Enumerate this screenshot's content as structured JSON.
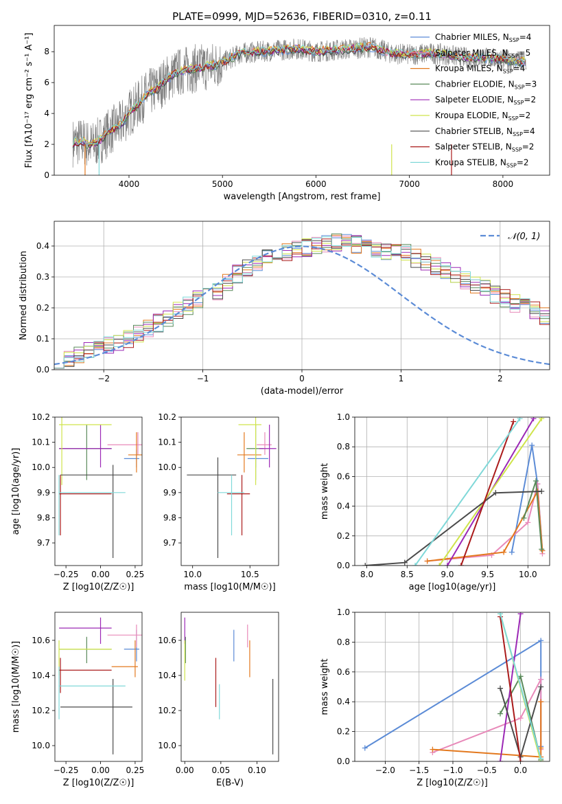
{
  "figure": {
    "title": "PLATE=0999, MJD=52636, FIBERID=0310, z=0.11"
  },
  "colors": {
    "Chabrier MILES": "#5b8bd6",
    "Salpeter MILES": "#e889b9",
    "Kroupa MILES": "#e3781d",
    "Chabrier ELODIE": "#5a8a5a",
    "Salpeter ELODIE": "#9b27b5",
    "Kroupa ELODIE": "#cfe44a",
    "Chabrier STELIB": "#4a4a4a",
    "Salpeter STELIB": "#aa1a1a",
    "Kroupa STELIB": "#7fd8d8",
    "data": "#808080",
    "normal": "#5b8bd6"
  },
  "chart_data": [
    {
      "id": "spectrum",
      "type": "line",
      "xlabel": "wavelength [Angstrom, rest frame]",
      "ylabel": "Flux [fλ10⁻¹⁷ erg cm⁻² s⁻¹ A⁻¹]",
      "xlim": [
        3200,
        8500
      ],
      "ylim": [
        0,
        9.7
      ],
      "xticks": [
        4000,
        5000,
        6000,
        7000,
        8000
      ],
      "yticks": [
        0,
        2,
        4,
        6,
        8
      ],
      "legend_position": "top-right",
      "legend": [
        {
          "name": "Chabrier MILES",
          "nssp": "4"
        },
        {
          "name": "Salpeter MILES",
          "nssp": "5"
        },
        {
          "name": "Kroupa MILES",
          "nssp": "4"
        },
        {
          "name": "Chabrier ELODIE",
          "nssp": "3"
        },
        {
          "name": "Salpeter ELODIE",
          "nssp": "2"
        },
        {
          "name": "Kroupa ELODIE",
          "nssp": "2"
        },
        {
          "name": "Chabrier STELIB",
          "nssp": "4"
        },
        {
          "name": "Salpeter STELIB",
          "nssp": "2"
        },
        {
          "name": "Kroupa STELIB",
          "nssp": "2"
        }
      ],
      "continuum": [
        [
          3400,
          2.1
        ],
        [
          3500,
          2.2
        ],
        [
          3600,
          1.9
        ],
        [
          3700,
          2.3
        ],
        [
          3800,
          2.9
        ],
        [
          3900,
          3.2
        ],
        [
          4000,
          4.0
        ],
        [
          4100,
          4.6
        ],
        [
          4200,
          5.3
        ],
        [
          4300,
          5.6
        ],
        [
          4400,
          6.2
        ],
        [
          4500,
          6.6
        ],
        [
          4600,
          6.8
        ],
        [
          4700,
          6.9
        ],
        [
          4800,
          7.0
        ],
        [
          4900,
          7.1
        ],
        [
          5000,
          7.3
        ],
        [
          5200,
          7.9
        ],
        [
          5400,
          8.0
        ],
        [
          5600,
          8.1
        ],
        [
          5800,
          8.2
        ],
        [
          6000,
          8.0
        ],
        [
          6200,
          8.1
        ],
        [
          6400,
          8.2
        ],
        [
          6600,
          8.3
        ],
        [
          6800,
          7.9
        ],
        [
          7000,
          7.8
        ],
        [
          7200,
          7.9
        ],
        [
          7400,
          7.8
        ],
        [
          7600,
          7.6
        ],
        [
          7800,
          7.6
        ],
        [
          8000,
          7.5
        ],
        [
          8250,
          7.3
        ]
      ]
    },
    {
      "id": "residuals",
      "type": "histogram",
      "xlabel": "(data-model)/error",
      "ylabel": "Normed distribution",
      "xlim": [
        -2.5,
        2.5
      ],
      "ylim": [
        0,
        0.48
      ],
      "xticks": [
        -2,
        -1,
        0,
        1,
        2
      ],
      "yticks": [
        0.0,
        0.1,
        0.2,
        0.3,
        0.4
      ],
      "grid": true,
      "legend": "𝒩(0, 1)",
      "legend_position": "top-right",
      "bin_width": 0.1,
      "bin_start": -2.5,
      "shape": [
        0.025,
        0.03,
        0.045,
        0.06,
        0.07,
        0.078,
        0.085,
        0.1,
        0.115,
        0.13,
        0.15,
        0.165,
        0.19,
        0.205,
        0.23,
        0.245,
        0.255,
        0.285,
        0.31,
        0.33,
        0.345,
        0.36,
        0.37,
        0.38,
        0.39,
        0.395,
        0.4,
        0.405,
        0.41,
        0.41,
        0.405,
        0.4,
        0.39,
        0.385,
        0.38,
        0.375,
        0.36,
        0.35,
        0.335,
        0.32,
        0.305,
        0.29,
        0.275,
        0.26,
        0.245,
        0.23,
        0.215,
        0.2,
        0.19,
        0.175,
        0.16,
        0.15,
        0.14,
        0.125,
        0.11,
        0.1,
        0.085,
        0.075,
        0.065,
        0.055
      ]
    },
    {
      "id": "age-vs-z",
      "type": "errorbar",
      "xlabel": "Z [log10(Z/Z☉)]",
      "ylabel": "age  [log10(age/yr)]",
      "xlim": [
        -0.33,
        0.3
      ],
      "ylim": [
        9.61,
        10.2
      ],
      "xticks": [
        -0.25,
        0.0,
        0.25
      ],
      "yticks": [
        9.7,
        9.8,
        9.9,
        10.0,
        10.1,
        10.2
      ],
      "points": [
        {
          "series": "Chabrier MILES",
          "x": 0.26,
          "xlo": 0.17,
          "xhi": 0.28,
          "y": 10.035,
          "ylo": 10.0,
          "yhi": 10.07
        },
        {
          "series": "Salpeter MILES",
          "x": 0.27,
          "xlo": 0.05,
          "xhi": 0.3,
          "y": 10.09,
          "ylo": 10.05,
          "yhi": 10.14
        },
        {
          "series": "Kroupa MILES",
          "x": 0.26,
          "xlo": 0.2,
          "xhi": 0.3,
          "y": 10.05,
          "ylo": 9.98,
          "yhi": 10.14
        },
        {
          "series": "Chabrier ELODIE",
          "x": -0.1,
          "xlo": -0.3,
          "xhi": 0.08,
          "y": 10.075,
          "ylo": 9.95,
          "yhi": 10.17
        },
        {
          "series": "Salpeter ELODIE",
          "x": 0.0,
          "xlo": -0.3,
          "xhi": 0.08,
          "y": 10.075,
          "ylo": 10.0,
          "yhi": 10.17
        },
        {
          "series": "Kroupa ELODIE",
          "x": -0.28,
          "xlo": -0.3,
          "xhi": 0.08,
          "y": 10.17,
          "ylo": 9.93,
          "yhi": 10.2
        },
        {
          "series": "Chabrier STELIB",
          "x": 0.09,
          "xlo": -0.29,
          "xhi": 0.23,
          "y": 9.97,
          "ylo": 9.64,
          "yhi": 10.01
        },
        {
          "series": "Salpeter STELIB",
          "x": -0.29,
          "xlo": -0.3,
          "xhi": 0.08,
          "y": 9.895,
          "ylo": 9.73,
          "yhi": 9.97
        },
        {
          "series": "Kroupa STELIB",
          "x": -0.3,
          "xlo": -0.3,
          "xhi": 0.18,
          "y": 9.9,
          "ylo": 9.73,
          "yhi": 9.97
        }
      ]
    },
    {
      "id": "age-vs-mass",
      "type": "errorbar",
      "xlabel": "mass [log10(M/M☉)]",
      "ylabel": "",
      "xlim": [
        9.9,
        10.75
      ],
      "ylim": [
        9.61,
        10.2
      ],
      "xticks": [
        10.0,
        10.5
      ],
      "yticks": [
        9.7,
        9.8,
        9.9,
        10.0,
        10.1,
        10.2
      ],
      "points": [
        {
          "series": "Chabrier MILES",
          "x": 10.55,
          "xlo": 10.48,
          "xhi": 10.66,
          "y": 10.035,
          "ylo": 10.0,
          "yhi": 10.07
        },
        {
          "series": "Salpeter MILES",
          "x": 10.63,
          "xlo": 10.56,
          "xhi": 10.69,
          "y": 10.09,
          "ylo": 10.05,
          "yhi": 10.14
        },
        {
          "series": "Kroupa MILES",
          "x": 10.45,
          "xlo": 10.39,
          "xhi": 10.6,
          "y": 10.05,
          "ylo": 9.98,
          "yhi": 10.14
        },
        {
          "series": "Chabrier ELODIE",
          "x": 10.55,
          "xlo": 10.47,
          "xhi": 10.62,
          "y": 10.075,
          "ylo": 9.95,
          "yhi": 10.17
        },
        {
          "series": "Salpeter ELODIE",
          "x": 10.67,
          "xlo": 10.58,
          "xhi": 10.73,
          "y": 10.075,
          "ylo": 10.0,
          "yhi": 10.17
        },
        {
          "series": "Kroupa ELODIE",
          "x": 10.55,
          "xlo": 10.4,
          "xhi": 10.6,
          "y": 10.17,
          "ylo": 9.93,
          "yhi": 10.2
        },
        {
          "series": "Chabrier STELIB",
          "x": 10.22,
          "xlo": 9.95,
          "xhi": 10.38,
          "y": 9.97,
          "ylo": 9.64,
          "yhi": 10.04
        },
        {
          "series": "Salpeter STELIB",
          "x": 10.43,
          "xlo": 10.3,
          "xhi": 10.5,
          "y": 9.895,
          "ylo": 9.73,
          "yhi": 9.97
        },
        {
          "series": "Kroupa STELIB",
          "x": 10.34,
          "xlo": 10.22,
          "xhi": 10.45,
          "y": 9.9,
          "ylo": 9.73,
          "yhi": 9.97
        }
      ]
    },
    {
      "id": "mass-weight-vs-age",
      "type": "line",
      "xlabel": "age  [log10(age/yr)]",
      "ylabel": "mass weight",
      "xlim": [
        7.85,
        10.27
      ],
      "ylim": [
        0,
        1
      ],
      "xticks": [
        8.0,
        8.5,
        9.0,
        9.5,
        10.0
      ],
      "yticks": [
        0.0,
        0.2,
        0.4,
        0.6,
        0.8,
        1.0
      ],
      "grid": true,
      "series": [
        {
          "name": "Chabrier MILES",
          "points": [
            [
              9.8,
              0.09
            ],
            [
              10.05,
              0.81
            ],
            [
              10.12,
              0.55
            ],
            [
              10.18,
              0.1
            ]
          ]
        },
        {
          "name": "Salpeter MILES",
          "points": [
            [
              8.75,
              0.03
            ],
            [
              9.55,
              0.07
            ],
            [
              10.0,
              0.29
            ],
            [
              10.12,
              0.55
            ],
            [
              10.18,
              0.08
            ]
          ]
        },
        {
          "name": "Kroupa MILES",
          "points": [
            [
              8.75,
              0.03
            ],
            [
              9.7,
              0.09
            ],
            [
              10.12,
              0.5
            ],
            [
              10.18,
              0.1
            ]
          ]
        },
        {
          "name": "Chabrier ELODIE",
          "points": [
            [
              9.95,
              0.32
            ],
            [
              10.1,
              0.57
            ],
            [
              10.17,
              0.11
            ]
          ]
        },
        {
          "name": "Salpeter ELODIE",
          "points": [
            [
              9.0,
              0.0
            ],
            [
              10.07,
              0.99
            ]
          ]
        },
        {
          "name": "Kroupa ELODIE",
          "points": [
            [
              8.9,
              0.0
            ],
            [
              10.17,
              0.99
            ]
          ]
        },
        {
          "name": "Chabrier STELIB",
          "points": [
            [
              7.98,
              0.0
            ],
            [
              8.47,
              0.02
            ],
            [
              9.6,
              0.49
            ],
            [
              10.17,
              0.5
            ]
          ]
        },
        {
          "name": "Salpeter STELIB",
          "points": [
            [
              9.17,
              0.0
            ],
            [
              9.82,
              0.97
            ]
          ]
        },
        {
          "name": "Kroupa STELIB",
          "points": [
            [
              8.6,
              0.0
            ],
            [
              9.9,
              0.99
            ]
          ]
        }
      ]
    },
    {
      "id": "mass-vs-z",
      "type": "errorbar",
      "xlabel": "Z [log10(Z/Z☉)]",
      "ylabel": "mass [log10(M/M☉)]",
      "xlim": [
        -0.33,
        0.3
      ],
      "ylim": [
        9.91,
        10.76
      ],
      "xticks": [
        -0.25,
        0.0,
        0.25
      ],
      "yticks": [
        10.0,
        10.2,
        10.4,
        10.6
      ],
      "points": [
        {
          "series": "Chabrier MILES",
          "x": 0.26,
          "xlo": 0.17,
          "xhi": 0.28,
          "y": 10.55,
          "ylo": 10.48,
          "yhi": 10.66
        },
        {
          "series": "Salpeter MILES",
          "x": 0.26,
          "xlo": 0.05,
          "xhi": 0.3,
          "y": 10.63,
          "ylo": 10.56,
          "yhi": 10.69
        },
        {
          "series": "Kroupa MILES",
          "x": 0.25,
          "xlo": 0.08,
          "xhi": 0.27,
          "y": 10.45,
          "ylo": 10.39,
          "yhi": 10.6
        },
        {
          "series": "Chabrier ELODIE",
          "x": -0.1,
          "xlo": -0.3,
          "xhi": 0.08,
          "y": 10.55,
          "ylo": 10.47,
          "yhi": 10.62
        },
        {
          "series": "Salpeter ELODIE",
          "x": 0.0,
          "xlo": -0.3,
          "xhi": 0.08,
          "y": 10.67,
          "ylo": 10.58,
          "yhi": 10.73
        },
        {
          "series": "Kroupa ELODIE",
          "x": -0.3,
          "xlo": -0.3,
          "xhi": 0.08,
          "y": 10.55,
          "ylo": 10.4,
          "yhi": 10.6
        },
        {
          "series": "Chabrier STELIB",
          "x": 0.09,
          "xlo": -0.29,
          "xhi": 0.23,
          "y": 10.22,
          "ylo": 9.95,
          "yhi": 10.38
        },
        {
          "series": "Salpeter STELIB",
          "x": -0.29,
          "xlo": -0.3,
          "xhi": 0.08,
          "y": 10.43,
          "ylo": 10.3,
          "yhi": 10.5
        },
        {
          "series": "Kroupa STELIB",
          "x": -0.3,
          "xlo": -0.3,
          "xhi": 0.18,
          "y": 10.34,
          "ylo": 10.15,
          "yhi": 10.45
        }
      ]
    },
    {
      "id": "mass-vs-ebv",
      "type": "errorbar",
      "xlabel": "E(B-V)",
      "ylabel": "",
      "xlim": [
        -0.005,
        0.13
      ],
      "ylim": [
        9.91,
        10.76
      ],
      "xticks": [
        0.0,
        0.05,
        0.1
      ],
      "yticks": [
        10.0,
        10.2,
        10.4,
        10.6
      ],
      "points": [
        {
          "series": "Chabrier MILES",
          "x": 0.068,
          "y": 10.55,
          "ylo": 10.48,
          "yhi": 10.66
        },
        {
          "series": "Salpeter MILES",
          "x": 0.087,
          "y": 10.63,
          "ylo": 10.56,
          "yhi": 10.69
        },
        {
          "series": "Kroupa MILES",
          "x": 0.09,
          "y": 10.45,
          "ylo": 10.39,
          "yhi": 10.6
        },
        {
          "series": "Chabrier ELODIE",
          "x": 0.001,
          "y": 10.55,
          "ylo": 10.47,
          "yhi": 10.62
        },
        {
          "series": "Salpeter ELODIE",
          "x": 0.0,
          "y": 10.67,
          "ylo": 10.58,
          "yhi": 10.73
        },
        {
          "series": "Kroupa ELODIE",
          "x": 0.0,
          "y": 10.5,
          "ylo": 10.37,
          "yhi": 10.6
        },
        {
          "series": "Chabrier STELIB",
          "x": 0.122,
          "y": 10.22,
          "ylo": 9.95,
          "yhi": 10.38
        },
        {
          "series": "Salpeter STELIB",
          "x": 0.043,
          "y": 10.36,
          "ylo": 10.22,
          "yhi": 10.5
        },
        {
          "series": "Kroupa STELIB",
          "x": 0.048,
          "y": 10.25,
          "ylo": 10.15,
          "yhi": 10.35
        }
      ]
    },
    {
      "id": "mass-weight-vs-z",
      "type": "line",
      "xlabel": "Z [log10(Z/Z☉)]",
      "ylabel": "mass weight",
      "xlim": [
        -2.45,
        0.43
      ],
      "ylim": [
        0,
        1
      ],
      "xticks": [
        -2.0,
        -1.5,
        -1.0,
        -0.5,
        0.0
      ],
      "yticks": [
        0.0,
        0.2,
        0.4,
        0.6,
        0.8,
        1.0
      ],
      "grid": true,
      "series": [
        {
          "name": "Chabrier MILES",
          "points": [
            [
              -2.3,
              0.09
            ],
            [
              0.3,
              0.81
            ],
            [
              0.3,
              0.55
            ],
            [
              0.3,
              0.1
            ]
          ]
        },
        {
          "name": "Salpeter MILES",
          "points": [
            [
              -1.3,
              0.06
            ],
            [
              0.0,
              0.29
            ],
            [
              0.3,
              0.55
            ],
            [
              0.3,
              0.08
            ]
          ]
        },
        {
          "name": "Kroupa MILES",
          "points": [
            [
              -1.3,
              0.08
            ],
            [
              0.3,
              0.03
            ],
            [
              0.3,
              0.4
            ],
            [
              0.3,
              0.09
            ]
          ]
        },
        {
          "name": "Chabrier ELODIE",
          "points": [
            [
              -0.3,
              0.32
            ],
            [
              0.0,
              0.57
            ],
            [
              0.3,
              0.01
            ]
          ]
        },
        {
          "name": "Salpeter ELODIE",
          "points": [
            [
              -0.3,
              0.0
            ],
            [
              0.0,
              0.99
            ]
          ]
        },
        {
          "name": "Kroupa ELODIE",
          "points": [
            [
              -0.3,
              0.99
            ],
            [
              0.3,
              0.0
            ]
          ]
        },
        {
          "name": "Chabrier STELIB",
          "points": [
            [
              -0.3,
              0.49
            ],
            [
              0.0,
              0.03
            ],
            [
              0.3,
              0.5
            ]
          ]
        },
        {
          "name": "Salpeter STELIB",
          "points": [
            [
              -0.3,
              0.97
            ],
            [
              0.0,
              0.0
            ]
          ]
        },
        {
          "name": "Kroupa STELIB",
          "points": [
            [
              -0.3,
              0.99
            ],
            [
              0.3,
              0.02
            ]
          ]
        }
      ]
    }
  ]
}
